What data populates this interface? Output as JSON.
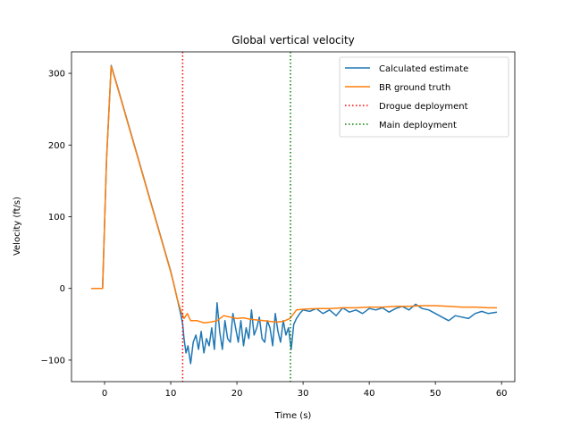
{
  "chart_data": {
    "type": "line",
    "title": "Global vertical velocity",
    "xlabel": "Time (s)",
    "ylabel": "Velocity (ft/s)",
    "xlim": [
      -5,
      62
    ],
    "ylim": [
      -130,
      330
    ],
    "xticks": [
      0,
      10,
      20,
      30,
      40,
      50,
      60
    ],
    "yticks": [
      -100,
      0,
      100,
      200,
      300
    ],
    "grid": false,
    "legend_position": "top-right",
    "series": [
      {
        "name": "Calculated estimate",
        "color": "#1f77b4",
        "x": [
          -2,
          -1,
          -0.3,
          0.3,
          1.0,
          2,
          3,
          4,
          5,
          6,
          7,
          8,
          9,
          10,
          10.5,
          11,
          11.5,
          11.8,
          12.0,
          12.3,
          12.6,
          13.0,
          13.4,
          13.8,
          14.2,
          14.6,
          15.0,
          15.4,
          15.8,
          16.2,
          16.6,
          17.0,
          17.4,
          17.8,
          18.2,
          18.6,
          19.0,
          19.4,
          19.8,
          20.2,
          20.6,
          21.0,
          21.4,
          21.8,
          22.2,
          22.6,
          23.0,
          23.4,
          23.8,
          24.2,
          24.6,
          25.0,
          25.4,
          25.8,
          26.2,
          26.6,
          27.0,
          27.4,
          27.8,
          28.2,
          28.6,
          29.0,
          29.5,
          30,
          31,
          32,
          33,
          34,
          35,
          36,
          37,
          38,
          39,
          40,
          41,
          42,
          43,
          44,
          45,
          46,
          47,
          48,
          49,
          50,
          51,
          52,
          53,
          54,
          55,
          56,
          57,
          58,
          59.3
        ],
        "y": [
          0,
          0,
          0,
          180,
          311,
          280,
          248,
          216,
          184,
          152,
          120,
          88,
          56,
          24,
          5,
          -15,
          -35,
          -50,
          -70,
          -90,
          -80,
          -105,
          -75,
          -65,
          -85,
          -60,
          -90,
          -70,
          -80,
          -55,
          -85,
          -20,
          -60,
          -85,
          -45,
          -70,
          -75,
          -35,
          -55,
          -75,
          -45,
          -80,
          -55,
          -70,
          -30,
          -65,
          -55,
          -40,
          -70,
          -75,
          -45,
          -55,
          -80,
          -35,
          -60,
          -75,
          -45,
          -65,
          -55,
          -85,
          -50,
          -42,
          -35,
          -30,
          -32,
          -28,
          -35,
          -30,
          -38,
          -27,
          -33,
          -30,
          -35,
          -28,
          -30,
          -27,
          -33,
          -28,
          -25,
          -30,
          -22,
          -28,
          -30,
          -35,
          -40,
          -45,
          -38,
          -40,
          -42,
          -35,
          -32,
          -35,
          -33
        ]
      },
      {
        "name": "BR ground truth",
        "color": "#ff7f0e",
        "x": [
          -2,
          -1,
          -0.3,
          0.3,
          1.0,
          2,
          3,
          4,
          5,
          6,
          7,
          8,
          9,
          10,
          10.5,
          11,
          11.5,
          12.0,
          12.5,
          13,
          14,
          15,
          16,
          17,
          18,
          19,
          20,
          21,
          22,
          23,
          24,
          25,
          26,
          27,
          28,
          28.6,
          29,
          30,
          32,
          34,
          36,
          38,
          40,
          42,
          44,
          46,
          48,
          50,
          52,
          54,
          56,
          58,
          59.3
        ],
        "y": [
          0,
          0,
          0,
          180,
          310,
          279,
          247,
          215,
          183,
          151,
          119,
          87,
          55,
          23,
          5,
          -15,
          -30,
          -42,
          -35,
          -45,
          -45,
          -48,
          -47,
          -45,
          -38,
          -40,
          -42,
          -41,
          -43,
          -44,
          -45,
          -46,
          -47,
          -46,
          -42,
          -35,
          -30,
          -29,
          -28,
          -28,
          -27,
          -27,
          -26,
          -26,
          -25,
          -25,
          -24,
          -24,
          -25,
          -26,
          -26,
          -27,
          -27
        ]
      }
    ],
    "vlines": [
      {
        "name": "Drogue deployment",
        "x": 11.8,
        "color": "#ff0000",
        "style": "dotted"
      },
      {
        "name": "Main deployment",
        "x": 28.1,
        "color": "#008000",
        "style": "dotted"
      }
    ]
  }
}
